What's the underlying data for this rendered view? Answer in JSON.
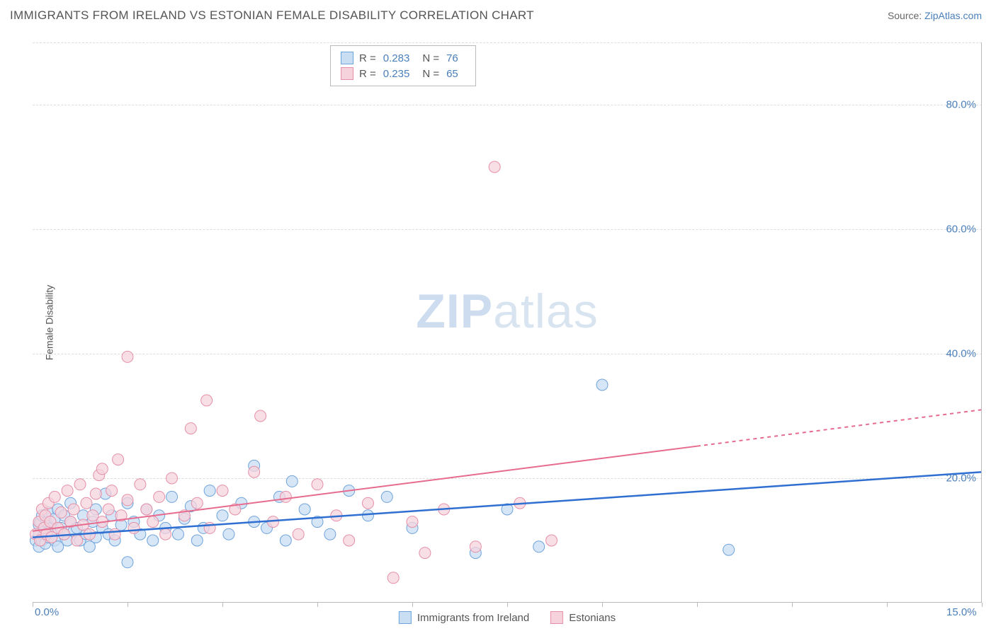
{
  "header": {
    "title": "IMMIGRANTS FROM IRELAND VS ESTONIAN FEMALE DISABILITY CORRELATION CHART",
    "source_label": "Source:",
    "source_name": "ZipAtlas.com"
  },
  "chart": {
    "type": "scatter",
    "ylabel": "Female Disability",
    "watermark_bold": "ZIP",
    "watermark_rest": "atlas",
    "xlim": [
      0,
      15
    ],
    "ylim": [
      0,
      90
    ],
    "x_ticks": [
      0,
      1.5,
      3,
      4.5,
      6,
      7.5,
      9,
      10.5,
      12,
      13.5,
      15
    ],
    "x_tick_labels": {
      "0": "0.0%",
      "15": "15.0%"
    },
    "y_gridlines": [
      20,
      40,
      60,
      80,
      90
    ],
    "y_tick_labels": {
      "20": "20.0%",
      "40": "40.0%",
      "60": "60.0%",
      "80": "80.0%"
    },
    "grid_color": "#dddddd",
    "axis_color": "#bbbbbb",
    "background_color": "#ffffff",
    "tick_label_color": "#4a7fba",
    "series": [
      {
        "id": "ireland",
        "label": "Immigrants from Ireland",
        "marker_fill": "#c9ddf3",
        "marker_stroke": "#6fa3db",
        "marker_radius": 8,
        "line_color": "#2e6fd1",
        "line_width": 2.5,
        "r": 0.283,
        "n": 76,
        "trend": {
          "x1": 0,
          "y1": 10.5,
          "x2": 15,
          "y2": 21.0,
          "solid_until_x": 15
        },
        "points": [
          [
            0.05,
            10
          ],
          [
            0.1,
            11
          ],
          [
            0.1,
            12.5
          ],
          [
            0.1,
            9
          ],
          [
            0.12,
            13
          ],
          [
            0.15,
            10
          ],
          [
            0.15,
            14
          ],
          [
            0.18,
            11
          ],
          [
            0.2,
            12
          ],
          [
            0.2,
            9.5
          ],
          [
            0.22,
            13
          ],
          [
            0.25,
            10.5
          ],
          [
            0.25,
            14.5
          ],
          [
            0.3,
            12
          ],
          [
            0.3,
            11
          ],
          [
            0.35,
            10
          ],
          [
            0.35,
            13.5
          ],
          [
            0.4,
            15
          ],
          [
            0.4,
            9
          ],
          [
            0.45,
            12
          ],
          [
            0.5,
            11
          ],
          [
            0.5,
            14
          ],
          [
            0.55,
            10
          ],
          [
            0.6,
            13
          ],
          [
            0.6,
            16
          ],
          [
            0.65,
            11.5
          ],
          [
            0.7,
            12
          ],
          [
            0.75,
            10
          ],
          [
            0.8,
            14
          ],
          [
            0.85,
            11
          ],
          [
            0.9,
            9
          ],
          [
            0.95,
            13
          ],
          [
            1.0,
            15
          ],
          [
            1.0,
            10.5
          ],
          [
            1.1,
            12
          ],
          [
            1.15,
            17.5
          ],
          [
            1.2,
            11
          ],
          [
            1.25,
            14
          ],
          [
            1.3,
            10
          ],
          [
            1.4,
            12.5
          ],
          [
            1.5,
            16
          ],
          [
            1.5,
            6.5
          ],
          [
            1.6,
            13
          ],
          [
            1.7,
            11
          ],
          [
            1.8,
            15
          ],
          [
            1.9,
            10
          ],
          [
            2.0,
            14
          ],
          [
            2.1,
            12
          ],
          [
            2.2,
            17
          ],
          [
            2.3,
            11
          ],
          [
            2.4,
            13.5
          ],
          [
            2.5,
            15.5
          ],
          [
            2.6,
            10
          ],
          [
            2.7,
            12
          ],
          [
            2.8,
            18
          ],
          [
            3.0,
            14
          ],
          [
            3.1,
            11
          ],
          [
            3.3,
            16
          ],
          [
            3.5,
            13
          ],
          [
            3.5,
            22
          ],
          [
            3.7,
            12
          ],
          [
            3.9,
            17
          ],
          [
            4.0,
            10
          ],
          [
            4.1,
            19.5
          ],
          [
            4.3,
            15
          ],
          [
            4.5,
            13
          ],
          [
            4.7,
            11
          ],
          [
            5.0,
            18
          ],
          [
            5.3,
            14
          ],
          [
            5.6,
            17
          ],
          [
            6.0,
            12
          ],
          [
            7.0,
            8
          ],
          [
            7.5,
            15
          ],
          [
            8.0,
            9
          ],
          [
            9.0,
            35
          ],
          [
            11.0,
            8.5
          ]
        ]
      },
      {
        "id": "estonians",
        "label": "Estonians",
        "marker_fill": "#f6d3dc",
        "marker_stroke": "#e590a8",
        "marker_radius": 8,
        "line_color": "#e66b8e",
        "line_width": 2,
        "r": 0.235,
        "n": 65,
        "trend": {
          "x1": 0,
          "y1": 11.5,
          "x2": 15,
          "y2": 31.0,
          "solid_until_x": 10.5
        },
        "points": [
          [
            0.05,
            11
          ],
          [
            0.1,
            13
          ],
          [
            0.12,
            10
          ],
          [
            0.15,
            15
          ],
          [
            0.18,
            12
          ],
          [
            0.2,
            14
          ],
          [
            0.22,
            11
          ],
          [
            0.25,
            16
          ],
          [
            0.28,
            13
          ],
          [
            0.3,
            10.5
          ],
          [
            0.35,
            17
          ],
          [
            0.4,
            12
          ],
          [
            0.45,
            14.5
          ],
          [
            0.5,
            11
          ],
          [
            0.55,
            18
          ],
          [
            0.6,
            13
          ],
          [
            0.65,
            15
          ],
          [
            0.7,
            10
          ],
          [
            0.75,
            19
          ],
          [
            0.8,
            12.5
          ],
          [
            0.85,
            16
          ],
          [
            0.9,
            11
          ],
          [
            0.95,
            14
          ],
          [
            1.0,
            17.5
          ],
          [
            1.05,
            20.5
          ],
          [
            1.1,
            21.5
          ],
          [
            1.1,
            13
          ],
          [
            1.2,
            15
          ],
          [
            1.25,
            18
          ],
          [
            1.3,
            11
          ],
          [
            1.35,
            23
          ],
          [
            1.4,
            14
          ],
          [
            1.5,
            16.5
          ],
          [
            1.5,
            39.5
          ],
          [
            1.6,
            12
          ],
          [
            1.7,
            19
          ],
          [
            1.8,
            15
          ],
          [
            1.9,
            13
          ],
          [
            2.0,
            17
          ],
          [
            2.1,
            11
          ],
          [
            2.2,
            20
          ],
          [
            2.4,
            14
          ],
          [
            2.5,
            28
          ],
          [
            2.6,
            16
          ],
          [
            2.75,
            32.5
          ],
          [
            2.8,
            12
          ],
          [
            3.0,
            18
          ],
          [
            3.2,
            15
          ],
          [
            3.5,
            21
          ],
          [
            3.6,
            30
          ],
          [
            3.8,
            13
          ],
          [
            4.0,
            17
          ],
          [
            4.2,
            11
          ],
          [
            4.5,
            19
          ],
          [
            4.8,
            14
          ],
          [
            5.0,
            10
          ],
          [
            5.3,
            16
          ],
          [
            5.7,
            4
          ],
          [
            6.0,
            13
          ],
          [
            6.2,
            8
          ],
          [
            6.5,
            15
          ],
          [
            7.0,
            9
          ],
          [
            7.3,
            70
          ],
          [
            7.7,
            16
          ],
          [
            8.2,
            10
          ]
        ]
      }
    ],
    "legend_stats": {
      "r_label": "R =",
      "n_label": "N ="
    },
    "bottom_legend_labels": [
      "Immigrants from Ireland",
      "Estonians"
    ]
  }
}
